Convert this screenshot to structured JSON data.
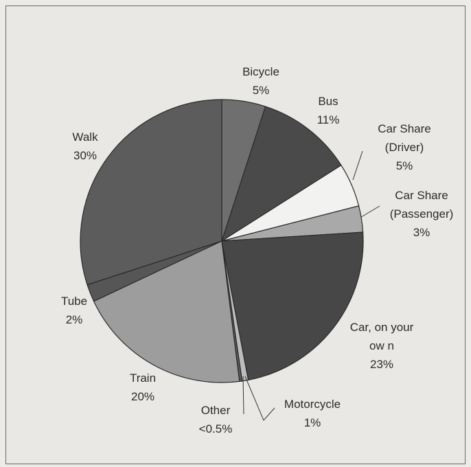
{
  "chart_data": {
    "type": "pie",
    "title": "",
    "start_angle_deg": 0,
    "direction": "clockwise",
    "slices": [
      {
        "id": "bicycle",
        "label_lines": [
          "Bicycle",
          "5%"
        ],
        "value": 5,
        "color": "#6f6f6f"
      },
      {
        "id": "bus",
        "label_lines": [
          "Bus",
          "11%"
        ],
        "value": 11,
        "color": "#4a4a4a"
      },
      {
        "id": "car-share-driver",
        "label_lines": [
          "Car Share",
          "(Driver)",
          "5%"
        ],
        "value": 5,
        "color": "#f2f2f0"
      },
      {
        "id": "car-share-passenger",
        "label_lines": [
          "Car Share",
          "(Passenger)",
          "3%"
        ],
        "value": 3,
        "color": "#a9a9a9"
      },
      {
        "id": "car-own",
        "label_lines": [
          "Car, on your",
          "ow n",
          "23%"
        ],
        "value": 23,
        "color": "#474747"
      },
      {
        "id": "motorcycle",
        "label_lines": [
          "Motorcycle",
          "1%"
        ],
        "value": 0.7,
        "color": "#bdbdbd"
      },
      {
        "id": "other",
        "label_lines": [
          "Other",
          "<0.5%"
        ],
        "value": 0.3,
        "color": "#5a5a5a"
      },
      {
        "id": "train",
        "label_lines": [
          "Train",
          "20%"
        ],
        "value": 20,
        "color": "#9d9d9d"
      },
      {
        "id": "tube",
        "label_lines": [
          "Tube",
          "2%"
        ],
        "value": 2,
        "color": "#565656"
      },
      {
        "id": "walk",
        "label_lines": [
          "Walk",
          "30%"
        ],
        "value": 30,
        "color": "#5c5c5c"
      }
    ],
    "legend": "none"
  }
}
